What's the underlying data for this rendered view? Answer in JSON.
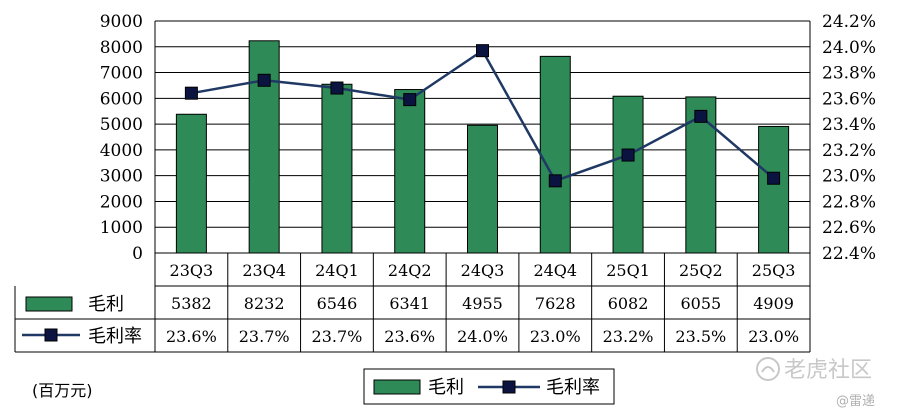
{
  "chart_data": {
    "type": "bar+line",
    "categories": [
      "23Q3",
      "23Q4",
      "24Q1",
      "24Q2",
      "24Q3",
      "24Q4",
      "25Q1",
      "25Q2",
      "25Q3"
    ],
    "series": [
      {
        "name": "毛利",
        "type": "bar",
        "axis": "left",
        "values": [
          5382,
          8232,
          6546,
          6341,
          4955,
          7628,
          6082,
          6055,
          4909
        ],
        "color": "#2e8b57"
      },
      {
        "name": "毛利率",
        "type": "line",
        "axis": "right",
        "values": [
          23.64,
          23.74,
          23.68,
          23.59,
          23.97,
          22.96,
          23.16,
          23.46,
          22.98
        ],
        "labels": [
          "23.6%",
          "23.7%",
          "23.7%",
          "23.6%",
          "24.0%",
          "23.0%",
          "23.2%",
          "23.5%",
          "23.0%"
        ],
        "color": "#1f3864"
      }
    ],
    "y_left": {
      "min": 0,
      "max": 9000,
      "step": 1000
    },
    "y_right": {
      "min": 22.4,
      "max": 24.2,
      "step": 0.2,
      "suffix": "%"
    },
    "grid": true,
    "legend": "bottom-center",
    "data_table": true
  },
  "unit_label": "(百万元)",
  "watermark": {
    "text": "老虎社区",
    "sub": "@雷递"
  }
}
